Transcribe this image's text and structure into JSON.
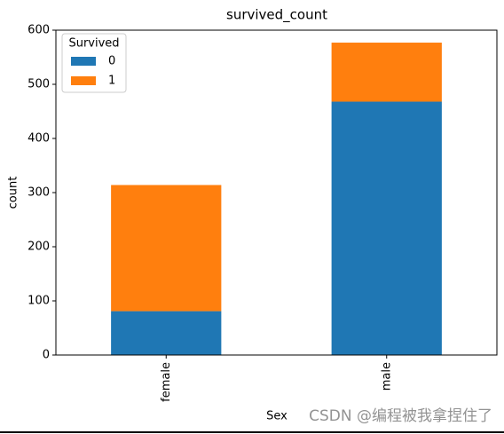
{
  "chart_data": {
    "type": "stacked_bar",
    "title": "survived_count",
    "x_label": "Sex",
    "y_label": "count",
    "categories": [
      "female",
      "male"
    ],
    "series": [
      {
        "name": "0",
        "color": "#1f77b4",
        "values": [
          81,
          468
        ]
      },
      {
        "name": "1",
        "color": "#ff7f0e",
        "values": [
          233,
          109
        ]
      }
    ],
    "legend_title": "Survived",
    "legend": "upper left",
    "ylim": [
      0,
      600
    ],
    "yticks": [
      0,
      100,
      200,
      300,
      400,
      500,
      600
    ],
    "grid": false
  },
  "watermark": "CSDN @编程被我拿捏住了"
}
